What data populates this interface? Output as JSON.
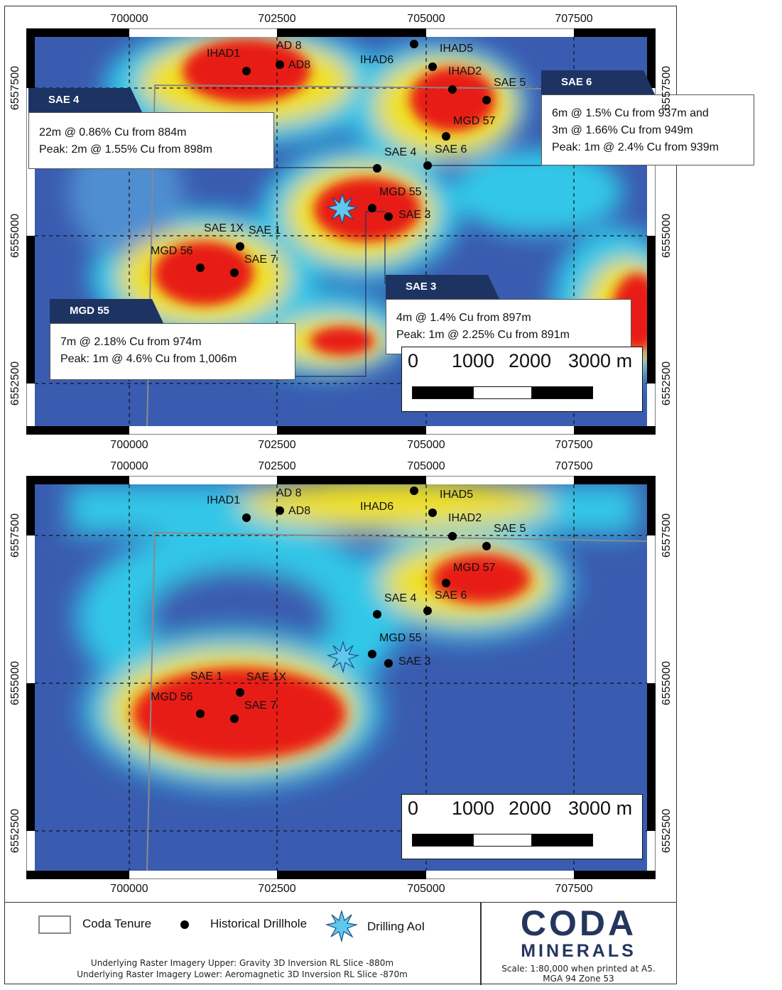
{
  "eastings": [
    "700000",
    "702500",
    "705000",
    "707500"
  ],
  "northings": [
    "6557500",
    "6555000",
    "6552500"
  ],
  "colors": {
    "navy": "#1d3361",
    "raster_low": "#3a5cb0",
    "raster_mid": "#31c7e8",
    "raster_high": "#f0e020",
    "raster_peak": "#e81a16",
    "tenure_line": "#8a8a8a"
  },
  "panels": [
    {
      "name": "upper",
      "drillholes": [
        {
          "id": "IHAD1",
          "label": "IHAD1"
        },
        {
          "id": "AD8",
          "label": "AD8"
        },
        {
          "id": "IHAD6",
          "label": "IHAD6"
        },
        {
          "id": "IHAD5",
          "label": "IHAD5"
        },
        {
          "id": "IHAD2",
          "label": "IHAD2"
        },
        {
          "id": "SAE5",
          "label": "SAE 5"
        },
        {
          "id": "MGD57",
          "label": "MGD 57"
        },
        {
          "id": "SAE6",
          "label": "SAE 6"
        },
        {
          "id": "SAE4",
          "label": "SAE 4"
        },
        {
          "id": "MGD55",
          "label": "MGD 55"
        },
        {
          "id": "SAE3",
          "label": "SAE 3"
        },
        {
          "id": "SAE1",
          "label": "SAE 1"
        },
        {
          "id": "MGD56",
          "label": "MGD 56"
        },
        {
          "id": "SAE7",
          "label": "SAE 7"
        }
      ],
      "extra_labels": [
        {
          "id": "AD 8",
          "label": "AD 8"
        },
        {
          "id": "SAE 1X",
          "label": "SAE 1X"
        }
      ],
      "scalebar": {
        "labels": [
          "0",
          "1000",
          "2000",
          "3000 m"
        ]
      },
      "callouts": [
        {
          "id": "sae4",
          "title": "SAE 4",
          "lines": [
            "22m @ 0.86% Cu from 884m",
            "Peak: 2m @ 1.55% Cu from 898m"
          ]
        },
        {
          "id": "sae6",
          "title": "SAE 6",
          "lines": [
            "6m @ 1.5% Cu from 937m and",
            "3m @ 1.66% Cu from 949m",
            "Peak: 1m @ 2.4% Cu from 939m"
          ]
        },
        {
          "id": "sae3",
          "title": "SAE 3",
          "lines": [
            "4m @ 1.4% Cu from 897m",
            "Peak: 1m @ 2.25% Cu from 891m"
          ]
        },
        {
          "id": "mgd55",
          "title": "MGD 55",
          "lines": [
            "7m @ 2.18% Cu from 974m",
            "Peak: 1m @ 4.6% Cu from 1,006m"
          ]
        }
      ]
    },
    {
      "name": "lower",
      "drillholes": [
        {
          "id": "IHAD1",
          "label": "IHAD1"
        },
        {
          "id": "AD8",
          "label": "AD8"
        },
        {
          "id": "IHAD6",
          "label": "IHAD6"
        },
        {
          "id": "IHAD5",
          "label": "IHAD5"
        },
        {
          "id": "IHAD2",
          "label": "IHAD2"
        },
        {
          "id": "SAE5",
          "label": "SAE 5"
        },
        {
          "id": "MGD57",
          "label": "MGD 57"
        },
        {
          "id": "SAE6",
          "label": "SAE 6"
        },
        {
          "id": "SAE4",
          "label": "SAE 4"
        },
        {
          "id": "MGD55",
          "label": "MGD 55"
        },
        {
          "id": "SAE3",
          "label": "SAE 3"
        },
        {
          "id": "SAE1",
          "label": "SAE 1"
        },
        {
          "id": "MGD56",
          "label": "MGD 56"
        },
        {
          "id": "SAE7",
          "label": "SAE 7"
        }
      ],
      "extra_labels": [
        {
          "id": "AD 8",
          "label": "AD 8"
        },
        {
          "id": "SAE 1X",
          "label": "SAE 1X"
        }
      ],
      "scalebar": {
        "labels": [
          "0",
          "1000",
          "2000",
          "3000 m"
        ]
      },
      "callouts": []
    }
  ],
  "legend": {
    "tenure": "Coda Tenure",
    "drillhole": "Historical Drillhole",
    "aoi": "Drilling AoI",
    "note_upper": "Underlying Raster Imagery Upper: Gravity 3D Inversion RL Slice -880m",
    "note_lower": "Underlying Raster Imagery Lower: Aeromagnetic 3D Inversion RL Slice -870m"
  },
  "brand": {
    "name": "CODA",
    "sub": "MINERALS",
    "scale_note": "Scale: 1:80,000 when printed at A5.",
    "projection": "MGA 94 Zone 53"
  }
}
